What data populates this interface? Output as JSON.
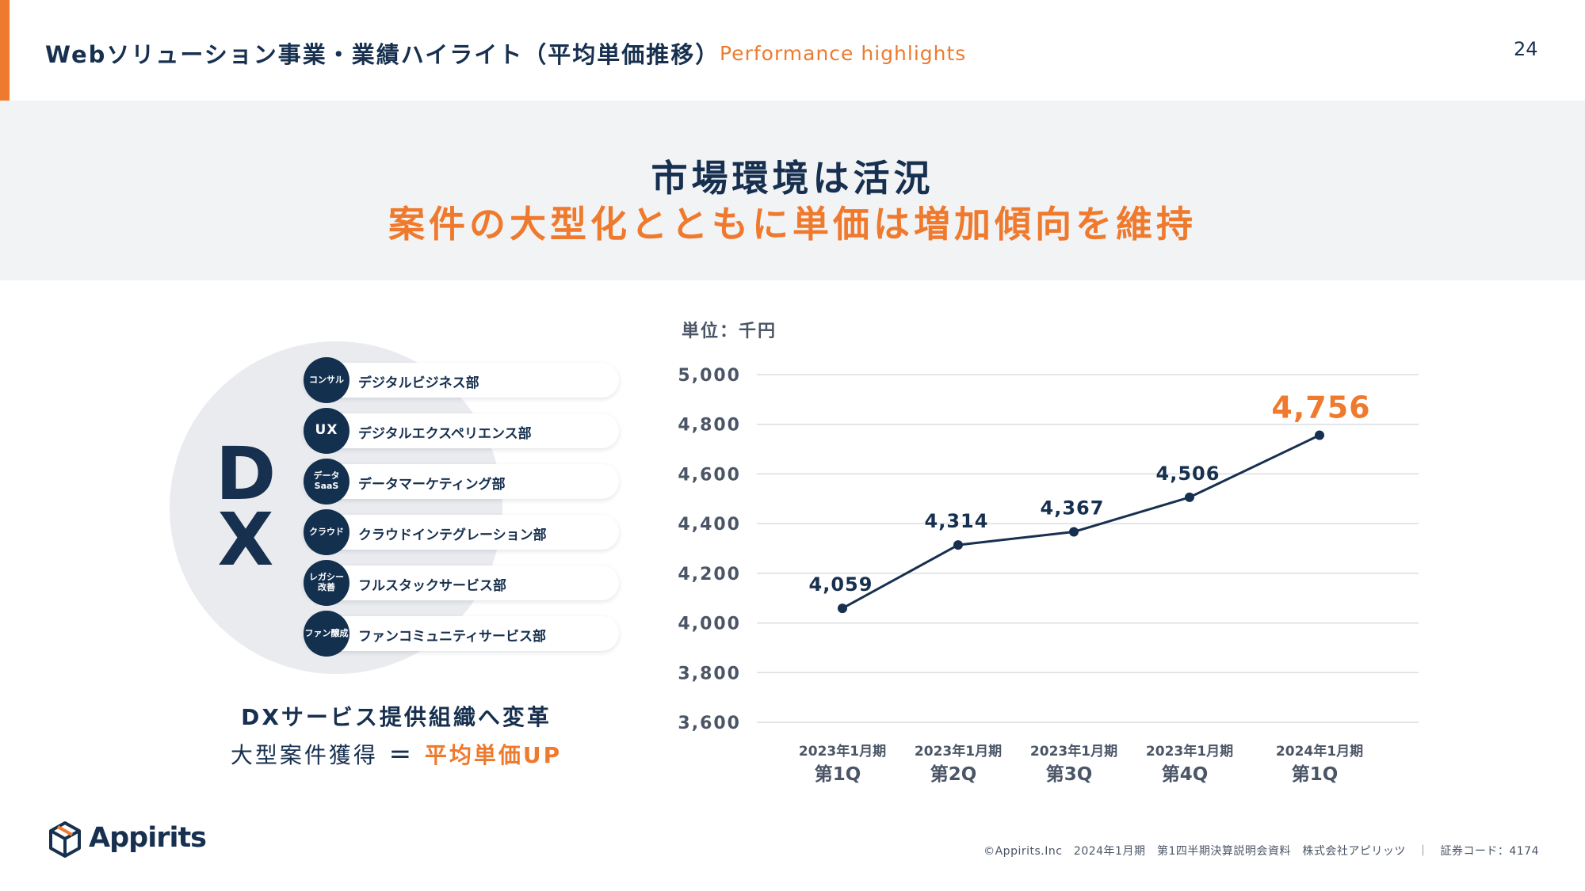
{
  "header": {
    "title": "Webソリューション事業・業績ハイライト（平均単価推移）",
    "subtitle": "Performance highlights",
    "page_number": "24"
  },
  "banner": {
    "line1": "市場環境は活況",
    "line2": "案件の大型化とともに単価は増加傾向を維持"
  },
  "dx": {
    "letter_d": "D",
    "letter_x": "X",
    "departments": [
      {
        "badge": "コンサル",
        "label": "デジタルビジネス部"
      },
      {
        "badge": "UX",
        "label": "デジタルエクスペリエンス部"
      },
      {
        "badge": "データ SaaS",
        "label": "データマーケティング部"
      },
      {
        "badge": "クラウド",
        "label": "クラウドインテグレーション部"
      },
      {
        "badge": "レガシー 改善",
        "label": "フルスタックサービス部"
      },
      {
        "badge": "ファン醸成",
        "label": "ファンコミュニティサービス部"
      }
    ],
    "caption1": "DXサービス提供組織へ変革",
    "caption2_left": "大型案件獲得",
    "caption2_eq": "＝",
    "caption2_right": "平均単価UP"
  },
  "colors": {
    "accent": "#ef7a2d",
    "navy": "#17304f",
    "banner_bg": "#f1f3f5",
    "grid": "#d9dde2"
  },
  "chart_data": {
    "type": "line",
    "unit_label": "単位：千円",
    "categories": [
      [
        "2023年1月期",
        "第1Q"
      ],
      [
        "2023年1月期",
        "第2Q"
      ],
      [
        "2023年1月期",
        "第3Q"
      ],
      [
        "2023年1月期",
        "第4Q"
      ],
      [
        "2024年1月期",
        "第1Q"
      ]
    ],
    "values": [
      4059,
      4314,
      4367,
      4506,
      4756
    ],
    "data_labels": [
      "4,059",
      "4,314",
      "4,367",
      "4,506",
      "4,756"
    ],
    "highlight_index": 4,
    "y_ticks": [
      "3,600",
      "3,800",
      "4,000",
      "4,200",
      "4,400",
      "4,600",
      "4,800",
      "5,000"
    ],
    "ylim": [
      3600,
      5000
    ],
    "grid": true
  },
  "footer": {
    "logo_text": "Appirits",
    "copyright": "©Appirits.Inc　2024年1月期　第1四半期決算説明会資料　株式会社アピリッツ　｜　証券コード：4174"
  }
}
